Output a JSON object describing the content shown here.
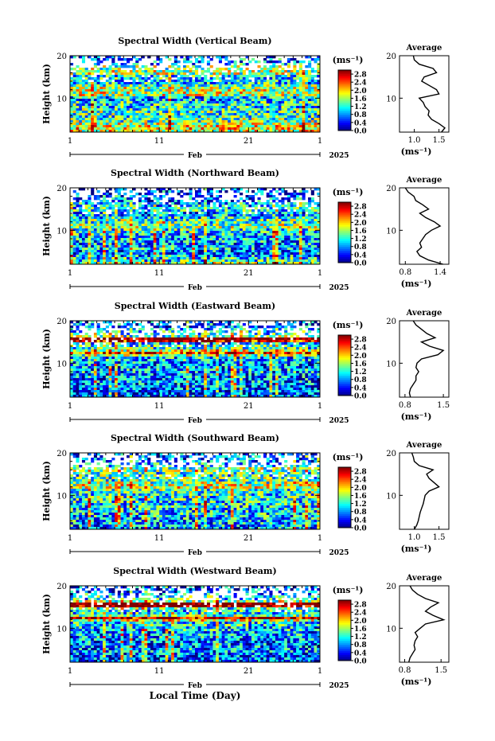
{
  "figure": {
    "xlabel": "Local Time (Day)",
    "colorbar_unit": "(ms⁻¹)",
    "avg_title": "Average",
    "avg_xlabel": "(ms⁻¹)",
    "ylabel": "Height (km)",
    "month": "Feb",
    "year": "2025"
  },
  "chart_data": [
    {
      "type": "heatmap",
      "title": "Spectral Width (Vertical Beam)",
      "x_ticks": [
        "1",
        "11",
        "21",
        "1"
      ],
      "xlim_days": [
        1,
        29
      ],
      "ylim": [
        2,
        20
      ],
      "y_ticks": [
        10,
        20
      ],
      "colorbar_ticks": [
        "0.0",
        "0.4",
        "0.8",
        "1.2",
        "1.6",
        "2.0",
        "2.4",
        "2.8"
      ],
      "colorbar_range": [
        0.0,
        3.0
      ],
      "avg_profile": {
        "xlim": [
          0.7,
          1.7
        ],
        "x_ticks": [
          "1.0",
          "1.5"
        ],
        "x_tick_values": [
          1.0,
          1.5
        ],
        "height_km": [
          2,
          3,
          4,
          5,
          6,
          7,
          8,
          9,
          10,
          11,
          12,
          13,
          14,
          15,
          16,
          17,
          18,
          19,
          20
        ],
        "values": [
          1.55,
          1.62,
          1.5,
          1.35,
          1.28,
          1.3,
          1.22,
          1.18,
          1.1,
          1.5,
          1.45,
          1.3,
          1.15,
          1.2,
          1.45,
          1.38,
          1.1,
          1.0,
          0.98
        ]
      }
    },
    {
      "type": "heatmap",
      "title": "Spectral Width (Northward Beam)",
      "x_ticks": [
        "1",
        "11",
        "21",
        "1"
      ],
      "xlim_days": [
        1,
        29
      ],
      "ylim": [
        2,
        20
      ],
      "y_ticks": [
        10,
        20
      ],
      "colorbar_ticks": [
        "0.0",
        "0.4",
        "0.8",
        "1.2",
        "1.6",
        "2.0",
        "2.4",
        "2.8"
      ],
      "colorbar_range": [
        0.0,
        3.0
      ],
      "avg_profile": {
        "xlim": [
          0.7,
          1.55
        ],
        "x_ticks": [
          "0.8",
          "1.4"
        ],
        "x_tick_values": [
          0.8,
          1.4
        ],
        "height_km": [
          2,
          3,
          4,
          5,
          6,
          7,
          8,
          9,
          10,
          11,
          12,
          13,
          14,
          15,
          16,
          17,
          18,
          19,
          20
        ],
        "values": [
          1.45,
          1.2,
          1.05,
          1.0,
          1.08,
          1.05,
          1.1,
          1.15,
          1.25,
          1.4,
          1.3,
          1.15,
          1.05,
          1.2,
          1.1,
          0.98,
          0.95,
          0.85,
          0.8
        ]
      }
    },
    {
      "type": "heatmap",
      "title": "Spectral Width (Eastward Beam)",
      "x_ticks": [
        "1",
        "11",
        "21",
        "1"
      ],
      "xlim_days": [
        1,
        29
      ],
      "ylim": [
        2,
        20
      ],
      "y_ticks": [
        10,
        20
      ],
      "colorbar_ticks": [
        "0.0",
        "0.4",
        "0.8",
        "1.2",
        "1.6",
        "2.0",
        "2.4",
        "2.8"
      ],
      "colorbar_range": [
        0.0,
        3.0
      ],
      "avg_profile": {
        "xlim": [
          0.7,
          1.6
        ],
        "x_ticks": [
          "0.8",
          "1.5"
        ],
        "x_tick_values": [
          0.8,
          1.5
        ],
        "height_km": [
          2,
          3,
          4,
          5,
          6,
          7,
          8,
          9,
          10,
          11,
          12,
          13,
          14,
          15,
          16,
          17,
          18,
          19,
          20
        ],
        "values": [
          0.9,
          0.88,
          0.9,
          0.95,
          1.0,
          1.0,
          1.05,
          1.0,
          1.02,
          1.1,
          1.4,
          1.5,
          1.25,
          1.1,
          1.35,
          1.2,
          1.1,
          1.0,
          0.95
        ]
      }
    },
    {
      "type": "heatmap",
      "title": "Spectral Width (Southward Beam)",
      "x_ticks": [
        "1",
        "11",
        "21",
        "1"
      ],
      "xlim_days": [
        1,
        29
      ],
      "ylim": [
        2,
        20
      ],
      "y_ticks": [
        10,
        20
      ],
      "colorbar_ticks": [
        "0.0",
        "0.4",
        "0.8",
        "1.2",
        "1.6",
        "2.0",
        "2.4",
        "2.8"
      ],
      "colorbar_range": [
        0.0,
        3.0
      ],
      "avg_profile": {
        "xlim": [
          0.7,
          1.7
        ],
        "x_ticks": [
          "1.0",
          "1.5"
        ],
        "x_tick_values": [
          1.0,
          1.5
        ],
        "height_km": [
          2,
          3,
          4,
          5,
          6,
          7,
          8,
          9,
          10,
          11,
          12,
          13,
          14,
          15,
          16,
          17,
          18,
          19,
          20
        ],
        "values": [
          1.0,
          1.05,
          1.08,
          1.1,
          1.12,
          1.15,
          1.18,
          1.2,
          1.22,
          1.3,
          1.5,
          1.4,
          1.3,
          1.25,
          1.38,
          1.1,
          1.0,
          0.98,
          0.95
        ]
      }
    },
    {
      "type": "heatmap",
      "title": "Spectral Width (Westward Beam)",
      "x_ticks": [
        "1",
        "11",
        "21",
        "1"
      ],
      "xlim_days": [
        1,
        29
      ],
      "ylim": [
        2,
        20
      ],
      "y_ticks": [
        10,
        20
      ],
      "colorbar_ticks": [
        "0.0",
        "0.4",
        "0.8",
        "1.2",
        "1.6",
        "2.0",
        "2.4",
        "2.8"
      ],
      "colorbar_range": [
        0.0,
        3.0
      ],
      "avg_profile": {
        "xlim": [
          0.7,
          1.65
        ],
        "x_ticks": [
          "0.8",
          "1.5"
        ],
        "x_tick_values": [
          0.8,
          1.5
        ],
        "height_km": [
          2,
          3,
          4,
          5,
          6,
          7,
          8,
          9,
          10,
          11,
          12,
          13,
          14,
          15,
          16,
          17,
          18,
          19,
          20
        ],
        "values": [
          0.88,
          0.9,
          0.95,
          1.0,
          0.98,
          1.0,
          1.05,
          1.0,
          1.1,
          1.2,
          1.55,
          1.35,
          1.2,
          1.3,
          1.45,
          1.2,
          1.05,
          0.95,
          0.9
        ]
      }
    }
  ]
}
